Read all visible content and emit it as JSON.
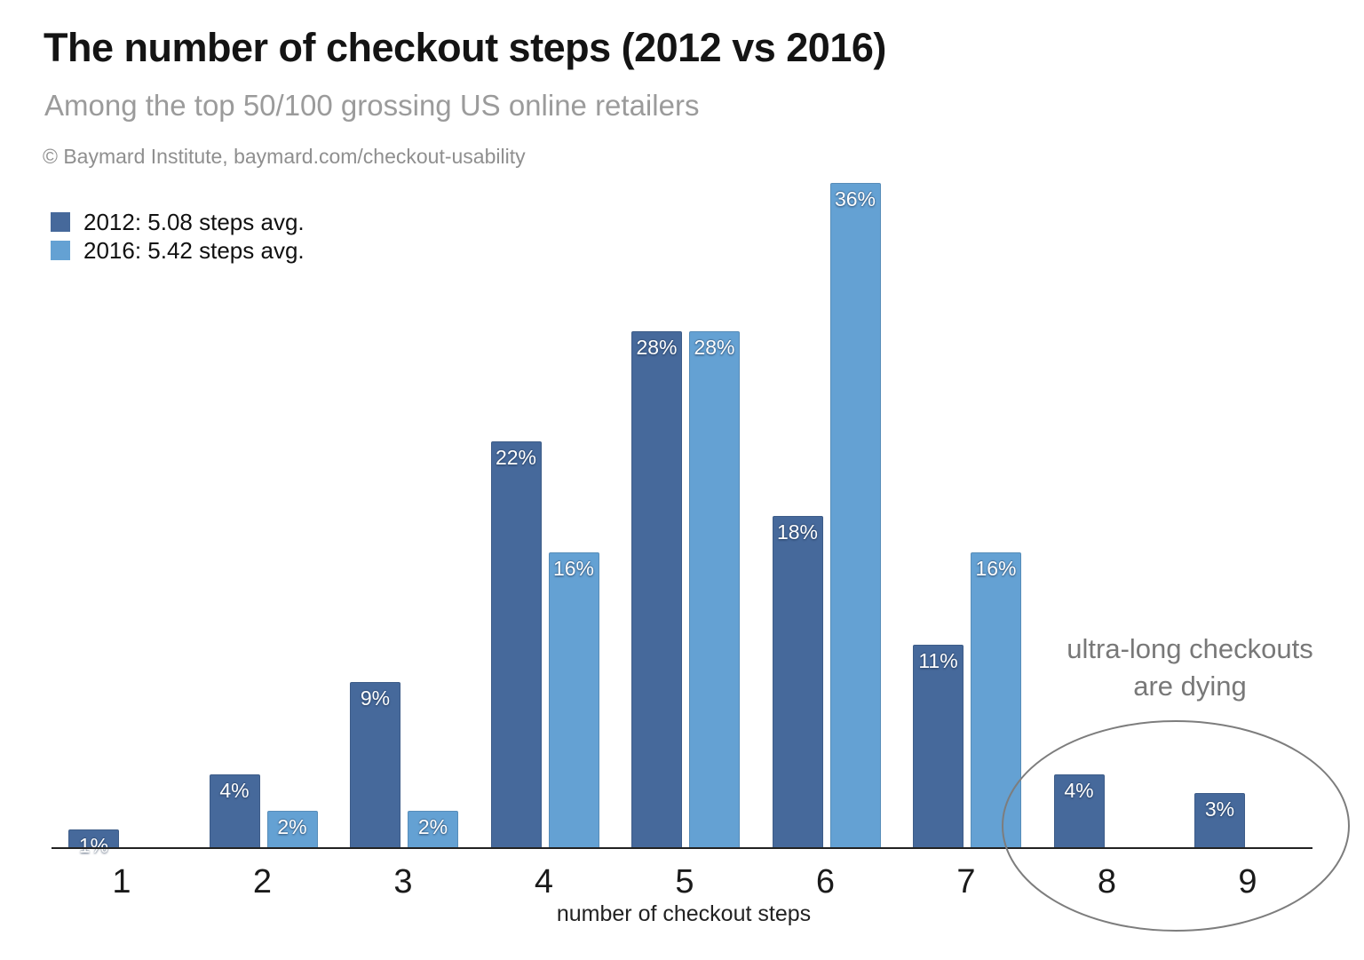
{
  "header": {
    "title": "The number of checkout steps (2012 vs 2016)",
    "subtitle": "Among the top 50/100 grossing US online retailers",
    "attribution": "© Baymard Institute, baymard.com/checkout-usability"
  },
  "legend": [
    {
      "label": "2012: 5.08 steps avg.",
      "color": "#46699b"
    },
    {
      "label": "2016: 5.42 steps avg.",
      "color": "#64a1d3"
    }
  ],
  "annotation": {
    "line1": "ultra-long checkouts",
    "line2": "are dying"
  },
  "xlabel": "number of checkout steps",
  "chart_data": {
    "type": "bar",
    "title": "The number of checkout steps (2012 vs 2016)",
    "subtitle": "Among the top 50/100 grossing US online retailers",
    "categories": [
      1,
      2,
      3,
      4,
      5,
      6,
      7,
      8,
      9
    ],
    "series": [
      {
        "name": "2012",
        "legend": "2012: 5.08 steps avg.",
        "avg_steps": 5.08,
        "color": "#46699b",
        "values": [
          1,
          4,
          9,
          22,
          28,
          18,
          11,
          4,
          3
        ]
      },
      {
        "name": "2016",
        "legend": "2016: 5.42 steps avg.",
        "avg_steps": 5.42,
        "color": "#64a1d3",
        "values": [
          null,
          2,
          2,
          16,
          28,
          36,
          16,
          null,
          null
        ]
      }
    ],
    "value_suffix": "%",
    "xlabel": "number of checkout steps",
    "ylim": [
      0,
      38
    ],
    "grid": false,
    "legend_position": "top-left",
    "annotation": "ultra-long checkouts are dying",
    "annotation_circled_categories": [
      8,
      9
    ]
  }
}
